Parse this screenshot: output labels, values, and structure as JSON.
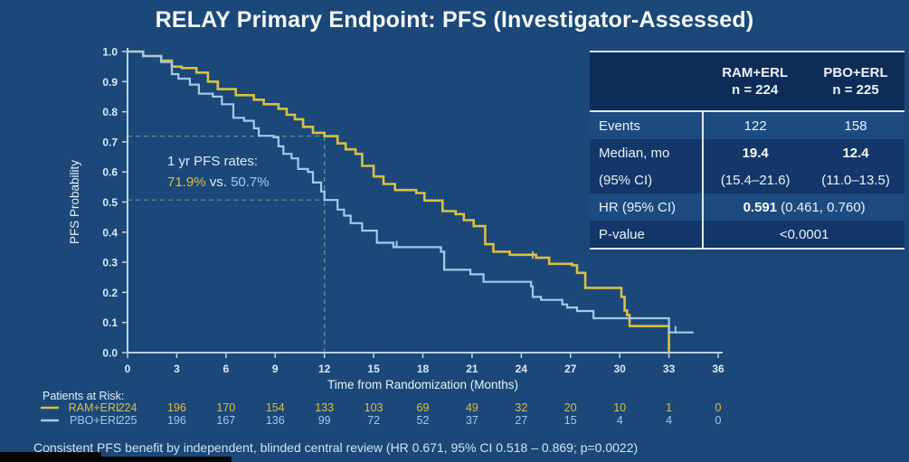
{
  "slide": {
    "title": "RELAY Primary Endpoint: PFS (Investigator-Assessed)",
    "footnote": "Consistent PFS benefit by independent, blinded central review (HR 0.671, 95% CI 0.518 – 0.869; p=0.0022)"
  },
  "colors": {
    "background": "#1b4878",
    "ram_curve": "#d9bf45",
    "pbo_curve": "#a4c8ec",
    "reference_dash": "#55a393",
    "axis": "#b9d3ea",
    "text_light": "#e8f0fa",
    "table_header_bg": "#0e2c58",
    "table_row_light": "#1d4b80",
    "table_row_dark": "#123768"
  },
  "results_table": {
    "columns": [
      {
        "name": "RAM+ERL",
        "n": "n = 224"
      },
      {
        "name": "PBO+ERL",
        "n": "n = 225"
      }
    ],
    "events": {
      "label": "Events",
      "ram": "122",
      "pbo": "158"
    },
    "median": {
      "label": "Median, mo",
      "ram": "19.4",
      "pbo": "12.4"
    },
    "ci": {
      "label": "(95% CI)",
      "ram": "(15.4–21.6)",
      "pbo": "(11.0–13.5)"
    },
    "hr": {
      "label": "HR (95% CI)",
      "value_bold": "0.591",
      "value_rest": " (0.461, 0.760)"
    },
    "pvalue": {
      "label": "P-value",
      "value": "<0.0001"
    }
  },
  "chart_data": {
    "type": "line",
    "style": "kaplan-meier-step",
    "title": "RELAY Primary Endpoint: PFS (Investigator-Assessed)",
    "xlabel": "Time from Randomization (Months)",
    "ylabel": "PFS Probability",
    "xlim": [
      0,
      36
    ],
    "ylim": [
      0,
      1
    ],
    "grid": false,
    "x_ticks": [
      0,
      3,
      6,
      9,
      12,
      15,
      18,
      21,
      24,
      27,
      30,
      33,
      36
    ],
    "y_ticks": [
      0,
      0.1,
      0.2,
      0.3,
      0.4,
      0.5,
      0.6,
      0.7,
      0.8,
      0.9,
      1.0
    ],
    "annotation": {
      "line1": "1 yr PFS rates:",
      "ram_rate_label": "71.9%",
      "vs_label": "vs.",
      "pbo_rate_label": "50.7%"
    },
    "reference_lines": {
      "month": 12,
      "ram_rate": 0.719,
      "pbo_rate": 0.507
    },
    "series": [
      {
        "name": "RAM+ERL",
        "color_key": "ram_curve",
        "steps": [
          [
            0,
            1.0
          ],
          [
            0.95,
            0.985
          ],
          [
            2.05,
            0.97
          ],
          [
            2.7,
            0.95
          ],
          [
            3.3,
            0.945
          ],
          [
            4.2,
            0.93
          ],
          [
            4.9,
            0.9
          ],
          [
            5.5,
            0.875
          ],
          [
            6.6,
            0.855
          ],
          [
            7.7,
            0.84
          ],
          [
            8.3,
            0.825
          ],
          [
            9.2,
            0.81
          ],
          [
            9.7,
            0.79
          ],
          [
            10.2,
            0.775
          ],
          [
            10.7,
            0.75
          ],
          [
            11.3,
            0.73
          ],
          [
            12.0,
            0.719
          ],
          [
            12.8,
            0.695
          ],
          [
            13.3,
            0.675
          ],
          [
            13.9,
            0.66
          ],
          [
            14.3,
            0.62
          ],
          [
            15.0,
            0.585
          ],
          [
            15.6,
            0.56
          ],
          [
            16.3,
            0.54
          ],
          [
            17.6,
            0.53
          ],
          [
            18.1,
            0.505
          ],
          [
            19.2,
            0.47
          ],
          [
            20.0,
            0.46
          ],
          [
            20.5,
            0.44
          ],
          [
            21.1,
            0.42
          ],
          [
            21.8,
            0.36
          ],
          [
            22.3,
            0.335
          ],
          [
            23.3,
            0.325
          ],
          [
            24.9,
            0.315
          ],
          [
            25.7,
            0.295
          ],
          [
            27.1,
            0.29
          ],
          [
            27.4,
            0.265
          ],
          [
            27.9,
            0.215
          ],
          [
            30.1,
            0.185
          ],
          [
            30.3,
            0.14
          ],
          [
            30.45,
            0.125
          ],
          [
            30.6,
            0.088
          ]
        ],
        "censor_marks": [
          [
            16.3,
            0.54
          ],
          [
            24.7,
            0.315
          ]
        ],
        "end_month": 33,
        "drop_to_zero": true
      },
      {
        "name": "PBO+ERL",
        "color_key": "pbo_curve",
        "steps": [
          [
            0,
            1.0
          ],
          [
            0.95,
            0.985
          ],
          [
            2.05,
            0.965
          ],
          [
            2.7,
            0.925
          ],
          [
            3.1,
            0.91
          ],
          [
            3.8,
            0.89
          ],
          [
            4.35,
            0.86
          ],
          [
            5.2,
            0.85
          ],
          [
            5.75,
            0.825
          ],
          [
            6.45,
            0.78
          ],
          [
            7.1,
            0.77
          ],
          [
            7.7,
            0.745
          ],
          [
            8.0,
            0.72
          ],
          [
            8.9,
            0.715
          ],
          [
            9.2,
            0.685
          ],
          [
            9.5,
            0.66
          ],
          [
            10.0,
            0.645
          ],
          [
            10.4,
            0.61
          ],
          [
            11.0,
            0.6
          ],
          [
            11.3,
            0.565
          ],
          [
            11.8,
            0.535
          ],
          [
            12.0,
            0.507
          ],
          [
            12.8,
            0.475
          ],
          [
            13.2,
            0.455
          ],
          [
            13.6,
            0.43
          ],
          [
            14.3,
            0.405
          ],
          [
            15.2,
            0.365
          ],
          [
            16.2,
            0.35
          ],
          [
            19.1,
            0.335
          ],
          [
            19.3,
            0.275
          ],
          [
            20.9,
            0.26
          ],
          [
            21.7,
            0.235
          ],
          [
            24.6,
            0.22
          ],
          [
            24.7,
            0.185
          ],
          [
            25.2,
            0.175
          ],
          [
            26.5,
            0.16
          ],
          [
            26.8,
            0.15
          ],
          [
            27.4,
            0.138
          ],
          [
            28.4,
            0.114
          ],
          [
            33.0,
            0.067
          ]
        ],
        "censor_marks": [
          [
            16.4,
            0.35
          ],
          [
            33.4,
            0.067
          ]
        ],
        "end_month": 34.5,
        "drop_to_zero": false
      }
    ],
    "patients_at_risk": {
      "label": "Patients at Risk:",
      "months": [
        0,
        3,
        6,
        9,
        12,
        15,
        18,
        21,
        24,
        27,
        30,
        33,
        36
      ],
      "rows": [
        {
          "name": "RAM+ERL",
          "color_key": "ram_curve",
          "values": [
            224,
            196,
            170,
            154,
            133,
            103,
            69,
            49,
            32,
            20,
            10,
            1,
            0
          ]
        },
        {
          "name": "PBO+ERL",
          "color_key": "pbo_curve",
          "values": [
            225,
            196,
            167,
            136,
            99,
            72,
            52,
            37,
            27,
            15,
            4,
            4,
            0
          ]
        }
      ]
    },
    "legend_position": "bottom-left-with-risk-table"
  }
}
